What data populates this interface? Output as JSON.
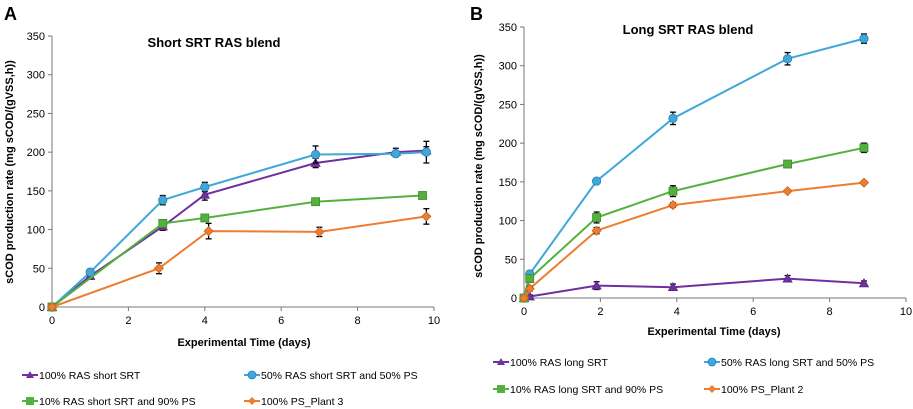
{
  "chart_data": [
    {
      "panel": "A",
      "type": "line",
      "title": "Short SRT RAS blend",
      "xlabel": "Experimental Time (days)",
      "ylabel": "sCOD production rate (mg sCOD/(gVSS,h))",
      "xlim": [
        0,
        10
      ],
      "ylim": [
        0,
        350
      ],
      "xticks": [
        0,
        2,
        4,
        6,
        8,
        10
      ],
      "yticks": [
        0,
        50,
        100,
        150,
        200,
        250,
        300,
        350
      ],
      "grid": false,
      "legend_position": "bottom",
      "series": [
        {
          "name": "100% RAS short SRT",
          "color": "#7030a0",
          "marker": "triangle",
          "x": [
            0,
            1,
            2.9,
            4,
            6.9,
            9,
            9.8
          ],
          "y": [
            0,
            40,
            104,
            145,
            186,
            200,
            202
          ],
          "err": [
            2,
            4,
            5,
            7,
            6,
            5,
            5
          ]
        },
        {
          "name": "50% RAS short SRT and 50% PS",
          "color": "#3fa8d8",
          "marker": "circle",
          "x": [
            0,
            1,
            2.9,
            4,
            6.9,
            9,
            9.8
          ],
          "y": [
            0,
            45,
            138,
            155,
            197,
            198,
            200
          ],
          "err": [
            2,
            4,
            6,
            6,
            11,
            4,
            14
          ]
        },
        {
          "name": "10% RAS short SRT and 90% PS",
          "color": "#55b13d",
          "marker": "square",
          "x": [
            0,
            2.9,
            4,
            6.9,
            9.7
          ],
          "y": [
            0,
            108,
            115,
            136,
            144
          ],
          "err": [
            2,
            4,
            4,
            4,
            3
          ]
        },
        {
          "name": "100% PS_Plant 3",
          "color": "#ed7d31",
          "marker": "diamond",
          "x": [
            0,
            2.8,
            4.1,
            7,
            9.8
          ],
          "y": [
            0,
            50,
            98,
            97,
            117
          ],
          "err": [
            2,
            7,
            10,
            6,
            10
          ]
        }
      ]
    },
    {
      "panel": "B",
      "type": "line",
      "title": "Long SRT RAS blend",
      "xlabel": "Experimental Time (days)",
      "ylabel": "sCOD production rate (mg sCOD/(gVSS,h))",
      "xlim": [
        0,
        10
      ],
      "ylim": [
        0,
        350
      ],
      "xticks": [
        0,
        2,
        4,
        6,
        8,
        10
      ],
      "yticks": [
        0,
        50,
        100,
        150,
        200,
        250,
        300,
        350
      ],
      "grid": false,
      "legend_position": "bottom",
      "series": [
        {
          "name": "100% RAS long SRT",
          "color": "#7030a0",
          "marker": "triangle",
          "x": [
            0,
            0.15,
            1.9,
            3.9,
            6.9,
            8.9
          ],
          "y": [
            0,
            2,
            16,
            14,
            25,
            19
          ],
          "err": [
            1,
            2,
            5,
            4,
            4,
            3
          ]
        },
        {
          "name": "50% RAS long SRT and 50% PS",
          "color": "#3fa8d8",
          "marker": "circle",
          "x": [
            0,
            0.15,
            1.9,
            3.9,
            6.9,
            8.9
          ],
          "y": [
            0,
            31,
            151,
            232,
            309,
            335
          ],
          "err": [
            1,
            4,
            3,
            8,
            8,
            6
          ]
        },
        {
          "name": "10% RAS long SRT and 90% PS",
          "color": "#55b13d",
          "marker": "square",
          "x": [
            0,
            0.15,
            1.9,
            3.9,
            6.9,
            8.9
          ],
          "y": [
            0,
            25,
            104,
            138,
            173,
            194
          ],
          "err": [
            1,
            4,
            7,
            7,
            4,
            6
          ]
        },
        {
          "name": "100% PS_Plant 2",
          "color": "#ed7d31",
          "marker": "diamond",
          "x": [
            0,
            0.15,
            1.9,
            3.9,
            6.9,
            8.9
          ],
          "y": [
            0,
            12,
            87,
            120,
            138,
            149
          ],
          "err": [
            1,
            3,
            4,
            3,
            2,
            2
          ]
        }
      ]
    }
  ]
}
